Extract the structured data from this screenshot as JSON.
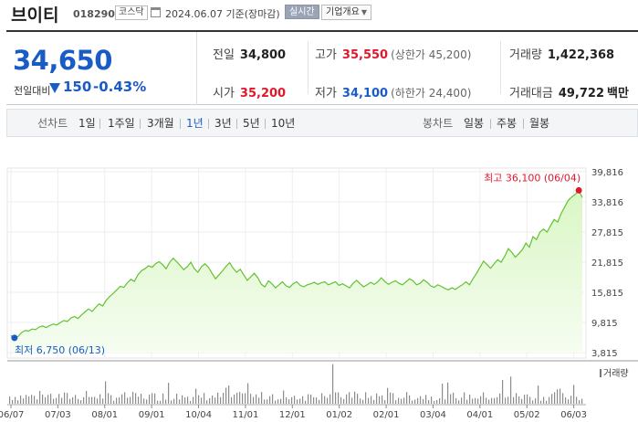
{
  "header": {
    "name": "브이티",
    "code": "018290",
    "market": "코스닥",
    "date": "2024.06.07 기준(장마감)",
    "realtime": "실시간",
    "company": "기업개요"
  },
  "price": {
    "current": "34,650",
    "compare_label": "전일대비",
    "change": "150",
    "change_pct": "-0.43%"
  },
  "stats": {
    "prev_label": "전일",
    "prev": "34,800",
    "high_label": "고가",
    "high": "35,550",
    "upper_limit": "(상한가 45,200)",
    "volume_label": "거래량",
    "volume": "1,422,368",
    "open_label": "시가",
    "open": "35,200",
    "low_label": "저가",
    "low": "34,100",
    "lower_limit": "(하한가 24,400)",
    "amount_label": "거래대금",
    "amount": "49,722",
    "amount_unit": "백만"
  },
  "tabs": {
    "line_label": "선차트",
    "periods": [
      "1일",
      "1주일",
      "3개월",
      "1년",
      "3년",
      "5년",
      "10년"
    ],
    "active": "1년",
    "candle_label": "봉차트",
    "candles": [
      "일봉",
      "주봉",
      "월봉"
    ]
  },
  "colors": {
    "up": "#e0182d",
    "down": "#1a5cc6",
    "line": "#62c232",
    "fill_top": "#d9f6c4",
    "fill_bottom": "#f6fdf1"
  },
  "chart_data": {
    "type": "area",
    "y_ticks": [
      "39,816",
      "33,816",
      "27,815",
      "21,815",
      "15,815",
      "9,815",
      "3,815"
    ],
    "y_tick_values": [
      39816,
      33816,
      27815,
      21815,
      15815,
      9815,
      3815
    ],
    "ylim": [
      3815,
      39816
    ],
    "x_ticks": [
      "06/07",
      "07/03",
      "08/01",
      "09/01",
      "10/04",
      "11/01",
      "12/01",
      "01/02",
      "02/01",
      "03/04",
      "04/01",
      "05/02",
      "06/03"
    ],
    "max_label": "최고 36,100 (06/04)",
    "min_label": "최저 6,750 (06/13)",
    "volume_legend": "거래량",
    "values": [
      7200,
      6750,
      7000,
      7800,
      8200,
      8100,
      8500,
      8400,
      8900,
      9100,
      8800,
      9200,
      9500,
      9300,
      9800,
      10200,
      10000,
      10700,
      11000,
      10600,
      11300,
      11900,
      12500,
      12000,
      12800,
      13500,
      13100,
      14200,
      15000,
      15600,
      16300,
      17000,
      16800,
      17700,
      18400,
      18000,
      19300,
      20100,
      20500,
      21100,
      20800,
      21500,
      21900,
      21300,
      20500,
      21800,
      22600,
      21900,
      21100,
      20300,
      20900,
      21800,
      20500,
      19800,
      20900,
      21500,
      20800,
      19600,
      18500,
      19300,
      20100,
      21000,
      21700,
      20600,
      19800,
      20400,
      19300,
      18200,
      18900,
      19600,
      18700,
      17400,
      16900,
      18100,
      17500,
      16700,
      17300,
      17900,
      17100,
      16800,
      17500,
      17900,
      17200,
      16900,
      17300,
      17500,
      17800,
      17400,
      17700,
      17900,
      17300,
      17600,
      17900,
      17200,
      17500,
      17100,
      16700,
      17600,
      18200,
      17500,
      16900,
      17300,
      17800,
      17400,
      17900,
      18700,
      18000,
      17400,
      17800,
      18100,
      17600,
      17300,
      17900,
      18500,
      18100,
      17300,
      17600,
      18300,
      17800,
      17100,
      16800,
      17300,
      17000,
      16600,
      16300,
      16700,
      16400,
      16900,
      17300,
      17900,
      17300,
      18500,
      19600,
      20800,
      22000,
      21300,
      20600,
      21500,
      22300,
      21800,
      23000,
      24500,
      23800,
      22800,
      23500,
      24300,
      25600,
      24800,
      26900,
      26300,
      27800,
      28400,
      27800,
      29100,
      30300,
      29800,
      31500,
      32800,
      34100,
      34800,
      35300,
      36100,
      34650
    ]
  }
}
